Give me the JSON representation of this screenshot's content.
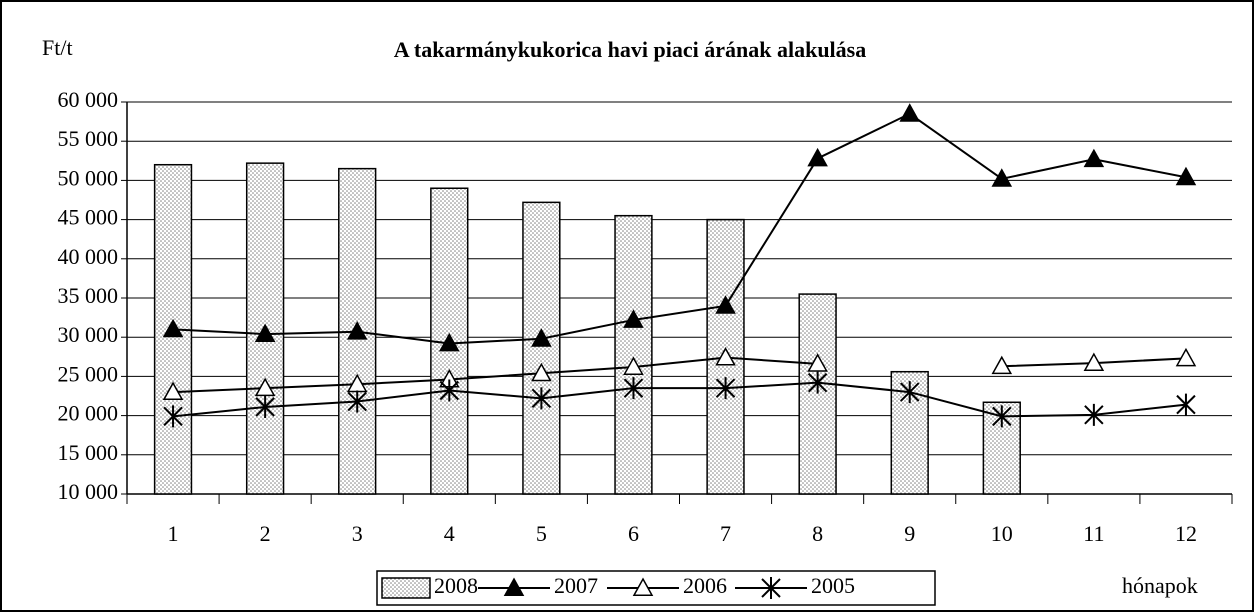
{
  "chart_data": {
    "type": "combo",
    "title": "A takarmánykukorica havi piaci árának alakulása",
    "y_label": "Ft/t",
    "x_label": "hónapok",
    "categories": [
      "1",
      "2",
      "3",
      "4",
      "5",
      "6",
      "7",
      "8",
      "9",
      "10",
      "11",
      "12"
    ],
    "ylim": [
      10000,
      60000
    ],
    "yticks": [
      {
        "value": 10000,
        "label": "10 000"
      },
      {
        "value": 15000,
        "label": "15 000"
      },
      {
        "value": 20000,
        "label": "20 000"
      },
      {
        "value": 25000,
        "label": "25 000"
      },
      {
        "value": 30000,
        "label": "30 000"
      },
      {
        "value": 35000,
        "label": "35 000"
      },
      {
        "value": 40000,
        "label": "40 000"
      },
      {
        "value": 45000,
        "label": "45 000"
      },
      {
        "value": 50000,
        "label": "50 000"
      },
      {
        "value": 55000,
        "label": "55 000"
      },
      {
        "value": 60000,
        "label": "60 000"
      }
    ],
    "grid": true,
    "legend": "bottom",
    "series": [
      {
        "name": "2008",
        "type": "bar",
        "color": "#808080",
        "values": [
          52000,
          52200,
          51500,
          49000,
          47200,
          45500,
          45000,
          35500,
          25600,
          21700,
          null,
          null
        ]
      },
      {
        "name": "2007",
        "type": "line",
        "marker": "triangle-filled",
        "color": "#000000",
        "values": [
          31000,
          30400,
          30700,
          29200,
          29800,
          32200,
          34000,
          52800,
          58500,
          50200,
          52700,
          50400
        ]
      },
      {
        "name": "2006",
        "type": "line",
        "marker": "triangle-open",
        "color": "#000000",
        "values": [
          23000,
          23500,
          24000,
          24600,
          25400,
          26200,
          27400,
          26600,
          null,
          26300,
          26700,
          27300
        ]
      },
      {
        "name": "2005",
        "type": "line",
        "marker": "star",
        "color": "#000000",
        "values": [
          19900,
          21100,
          21800,
          23200,
          22200,
          23500,
          23500,
          24200,
          23000,
          19900,
          20100,
          21400
        ]
      }
    ]
  }
}
